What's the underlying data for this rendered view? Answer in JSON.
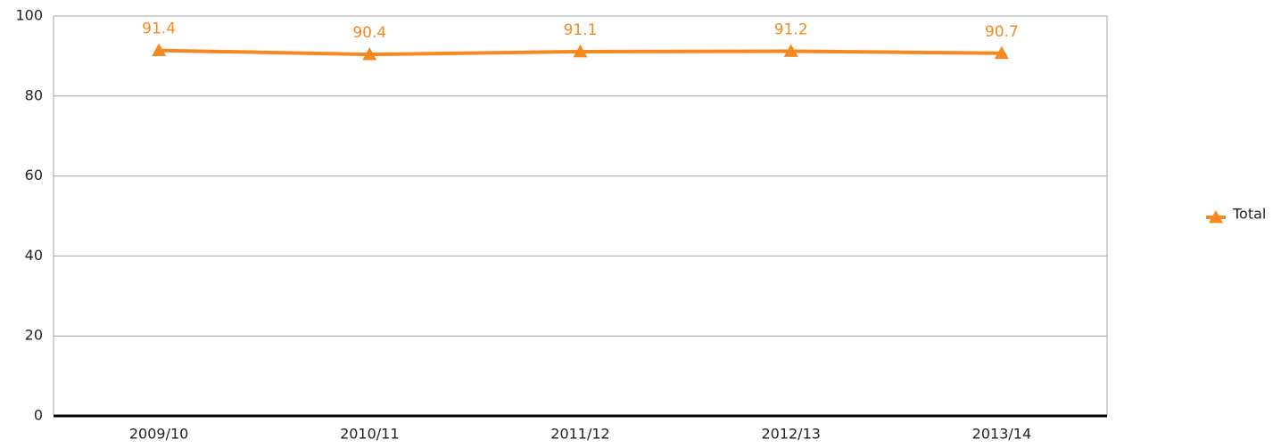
{
  "chart_data": {
    "type": "line",
    "categories": [
      "2009/10",
      "2010/11",
      "2011/12",
      "2012/13",
      "2013/14"
    ],
    "series": [
      {
        "name": "Total",
        "color": "#f7881f",
        "values": [
          91.4,
          90.4,
          91.1,
          91.2,
          90.7
        ]
      }
    ],
    "ylim": [
      0,
      100
    ],
    "yticks": [
      0,
      20,
      40,
      60,
      80,
      100
    ],
    "grid": true,
    "legend": "right"
  }
}
